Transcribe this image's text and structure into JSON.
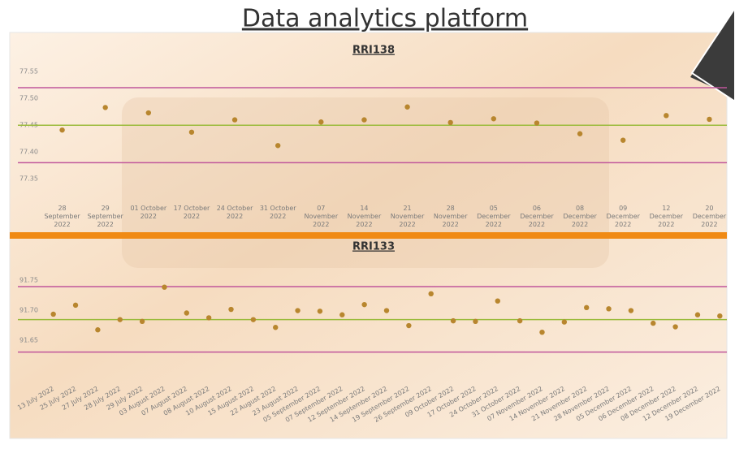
{
  "header": {
    "title": "Data analytics platform"
  },
  "chart_data": [
    {
      "type": "scatter",
      "title": "RRI138",
      "categories": [
        "28 September 2022",
        "29 September 2022",
        "01 October 2022",
        "17 October 2022",
        "24 October 2022",
        "31 October 2022",
        "07 November 2022",
        "14 November 2022",
        "21 November 2022",
        "28 November 2022",
        "05 December 2022",
        "06 December 2022",
        "08 December 2022",
        "09 December 2022",
        "12 December 2022",
        "20 December 2022"
      ],
      "values": [
        77.441,
        77.483,
        77.473,
        77.437,
        77.46,
        77.412,
        77.456,
        77.46,
        77.484,
        77.455,
        77.462,
        77.454,
        77.434,
        77.422,
        77.468,
        77.461
      ],
      "color": "#b8862e",
      "ylim": [
        77.32,
        77.57
      ],
      "yticks": [
        77.35,
        {
          "value": 77.4,
          "label": "77.40"
        },
        77.45,
        {
          "value": 77.5,
          "label": "77.50"
        },
        77.55
      ],
      "control_lines": [
        {
          "value": 77.52,
          "color": "#c0569b"
        },
        {
          "value": 77.45,
          "color": "#9bbb3c"
        },
        {
          "value": 77.38,
          "color": "#c0569b"
        }
      ]
    },
    {
      "type": "scatter",
      "title": "RRI133",
      "categories": [
        "13 July 2022",
        "25 July 2022",
        "27 July 2022",
        "28 July 2022",
        "29 July 2022",
        "03 August 2022",
        "07 August 2022",
        "08 August 2022",
        "10 August 2022",
        "15 August 2022",
        "22 August 2022",
        "23 August 2022",
        "05 September 2022",
        "07 September 2022",
        "12 September 2022",
        "14 September 2022",
        "19 September 2022",
        "26 September 2022",
        "09 October 2022",
        "17 October 2022",
        "24 October 2022",
        "31 October 2022",
        "07 November 2022",
        "14 November 2022",
        "21 November 2022",
        "28 November 2022",
        "05 December 2022",
        "06 December 2022",
        "08 December 2022",
        "12 December 2022",
        "19 December 2022"
      ],
      "values": [
        91.693,
        91.708,
        91.667,
        91.684,
        91.681,
        91.738,
        91.695,
        91.687,
        91.701,
        91.684,
        91.671,
        91.699,
        91.698,
        91.692,
        91.709,
        91.699,
        91.674,
        91.727,
        91.682,
        91.681,
        91.715,
        91.682,
        91.663,
        91.68,
        91.704,
        91.702,
        91.699,
        91.678,
        91.672,
        91.692,
        91.69
      ],
      "color": "#b8862e",
      "ylim": [
        91.62,
        91.77
      ],
      "yticks": [
        91.65,
        {
          "value": 91.7,
          "label": "91.70"
        },
        91.75
      ],
      "control_lines": [
        {
          "value": 91.739,
          "color": "#c0569b"
        },
        {
          "value": 91.684,
          "color": "#9bbb3c"
        },
        {
          "value": 91.63,
          "color": "#c0569b"
        }
      ]
    }
  ]
}
